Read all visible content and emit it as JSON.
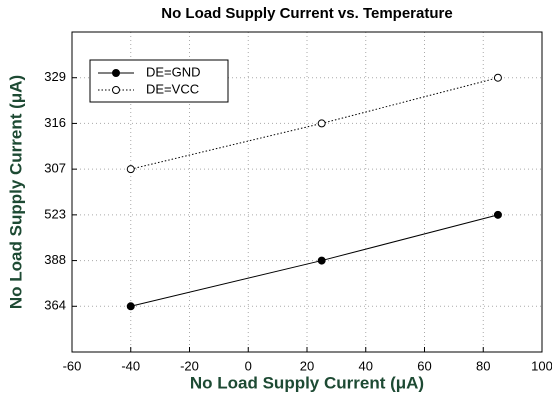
{
  "chart_data": {
    "type": "line",
    "title": "No Load Supply Current vs. Temperature",
    "x_label": "No Load Supply Current (μA)",
    "y_label": "No Load Supply Current (μA)",
    "x": [
      -40,
      25,
      85
    ],
    "series": [
      {
        "name": "DE=GND",
        "color": "#000000",
        "marker": "filled",
        "dash": "solid",
        "values": [
          1,
          2,
          3
        ]
      },
      {
        "name": "DE=VCC",
        "color": "#000000",
        "marker": "open",
        "dash": "dotted",
        "values": [
          4,
          5,
          6
        ]
      }
    ],
    "xlim": [
      -60,
      100
    ],
    "xticks": [
      -60,
      -40,
      -20,
      0,
      20,
      40,
      60,
      80,
      100
    ],
    "ylim": [
      0,
      7
    ],
    "yticks": [
      {
        "value": 1,
        "label": "364"
      },
      {
        "value": 2,
        "label": "388"
      },
      {
        "value": 3,
        "label": "523"
      },
      {
        "value": 4,
        "label": "307"
      },
      {
        "value": 5,
        "label": "316"
      },
      {
        "value": 6,
        "label": "329"
      }
    ],
    "grid": true,
    "legend": "upper left"
  }
}
